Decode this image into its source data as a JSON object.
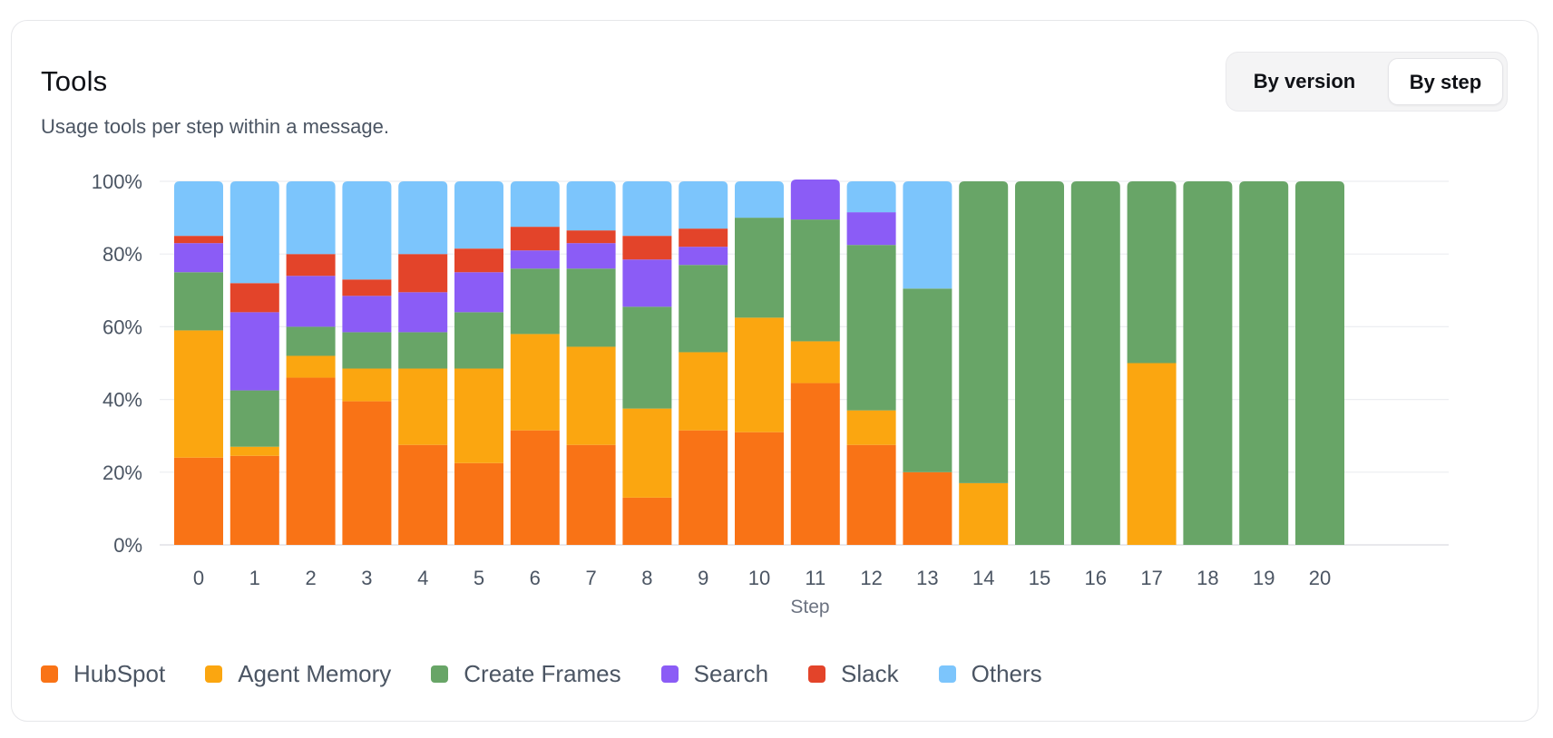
{
  "card": {
    "title": "Tools",
    "subtitle": "Usage tools per step within a message."
  },
  "toggle": {
    "by_version_label": "By version",
    "by_step_label": "By step",
    "selected": "By step"
  },
  "colors": {
    "HubSpot": "#f97316",
    "Agent Memory": "#fba610",
    "Create Frames": "#68a567",
    "Search": "#8b5cf6",
    "Slack": "#e3442a",
    "Others": "#7cc5fc"
  },
  "legend": [
    {
      "label": "HubSpot",
      "color": "#f97316"
    },
    {
      "label": "Agent Memory",
      "color": "#fba610"
    },
    {
      "label": "Create Frames",
      "color": "#68a567"
    },
    {
      "label": "Search",
      "color": "#8b5cf6"
    },
    {
      "label": "Slack",
      "color": "#e3442a"
    },
    {
      "label": "Others",
      "color": "#7cc5fc"
    }
  ],
  "chart_data": {
    "type": "bar",
    "stacked": true,
    "title": "Tools",
    "xlabel": "Step",
    "ylabel": "",
    "ylim": [
      0,
      100
    ],
    "yticks": [
      "0%",
      "20%",
      "40%",
      "60%",
      "80%",
      "100%"
    ],
    "grid": true,
    "legend_position": "bottom-left",
    "categories": [
      "0",
      "1",
      "2",
      "3",
      "4",
      "5",
      "6",
      "7",
      "8",
      "9",
      "10",
      "11",
      "12",
      "13",
      "14",
      "15",
      "16",
      "17",
      "18",
      "19",
      "20"
    ],
    "series": [
      {
        "name": "HubSpot",
        "values": [
          24,
          24.5,
          46,
          39.5,
          27.5,
          22.5,
          31.5,
          27.5,
          13,
          31.5,
          31,
          44.5,
          27.5,
          20,
          0,
          0,
          0,
          0,
          0,
          0,
          0
        ]
      },
      {
        "name": "Agent Memory",
        "values": [
          35,
          2.5,
          6,
          9,
          21,
          26,
          26.5,
          27,
          24.5,
          21.5,
          31.5,
          11.5,
          9.5,
          0,
          17,
          0,
          0,
          50,
          0,
          0,
          0
        ]
      },
      {
        "name": "Create Frames",
        "values": [
          16,
          15.5,
          8,
          10,
          10,
          15.5,
          18,
          21.5,
          28,
          24,
          27.5,
          33.5,
          45.5,
          50.5,
          83,
          100,
          100,
          50,
          100,
          100,
          100
        ]
      },
      {
        "name": "Search",
        "values": [
          8,
          21.5,
          14,
          10,
          11,
          11,
          5,
          7,
          13,
          5,
          0,
          11,
          9,
          0,
          0,
          0,
          0,
          0,
          0,
          0,
          0
        ]
      },
      {
        "name": "Slack",
        "values": [
          2,
          8,
          6,
          4.5,
          10.5,
          6.5,
          6.5,
          3.5,
          6.5,
          5,
          0,
          0,
          0,
          0,
          0,
          0,
          0,
          0,
          0,
          0,
          0
        ]
      },
      {
        "name": "Others",
        "values": [
          15,
          28,
          20,
          27,
          20,
          18.5,
          12.5,
          13.5,
          15,
          13,
          10,
          0,
          8.5,
          29.5,
          0,
          0,
          0,
          0,
          0,
          0,
          0
        ]
      }
    ]
  }
}
